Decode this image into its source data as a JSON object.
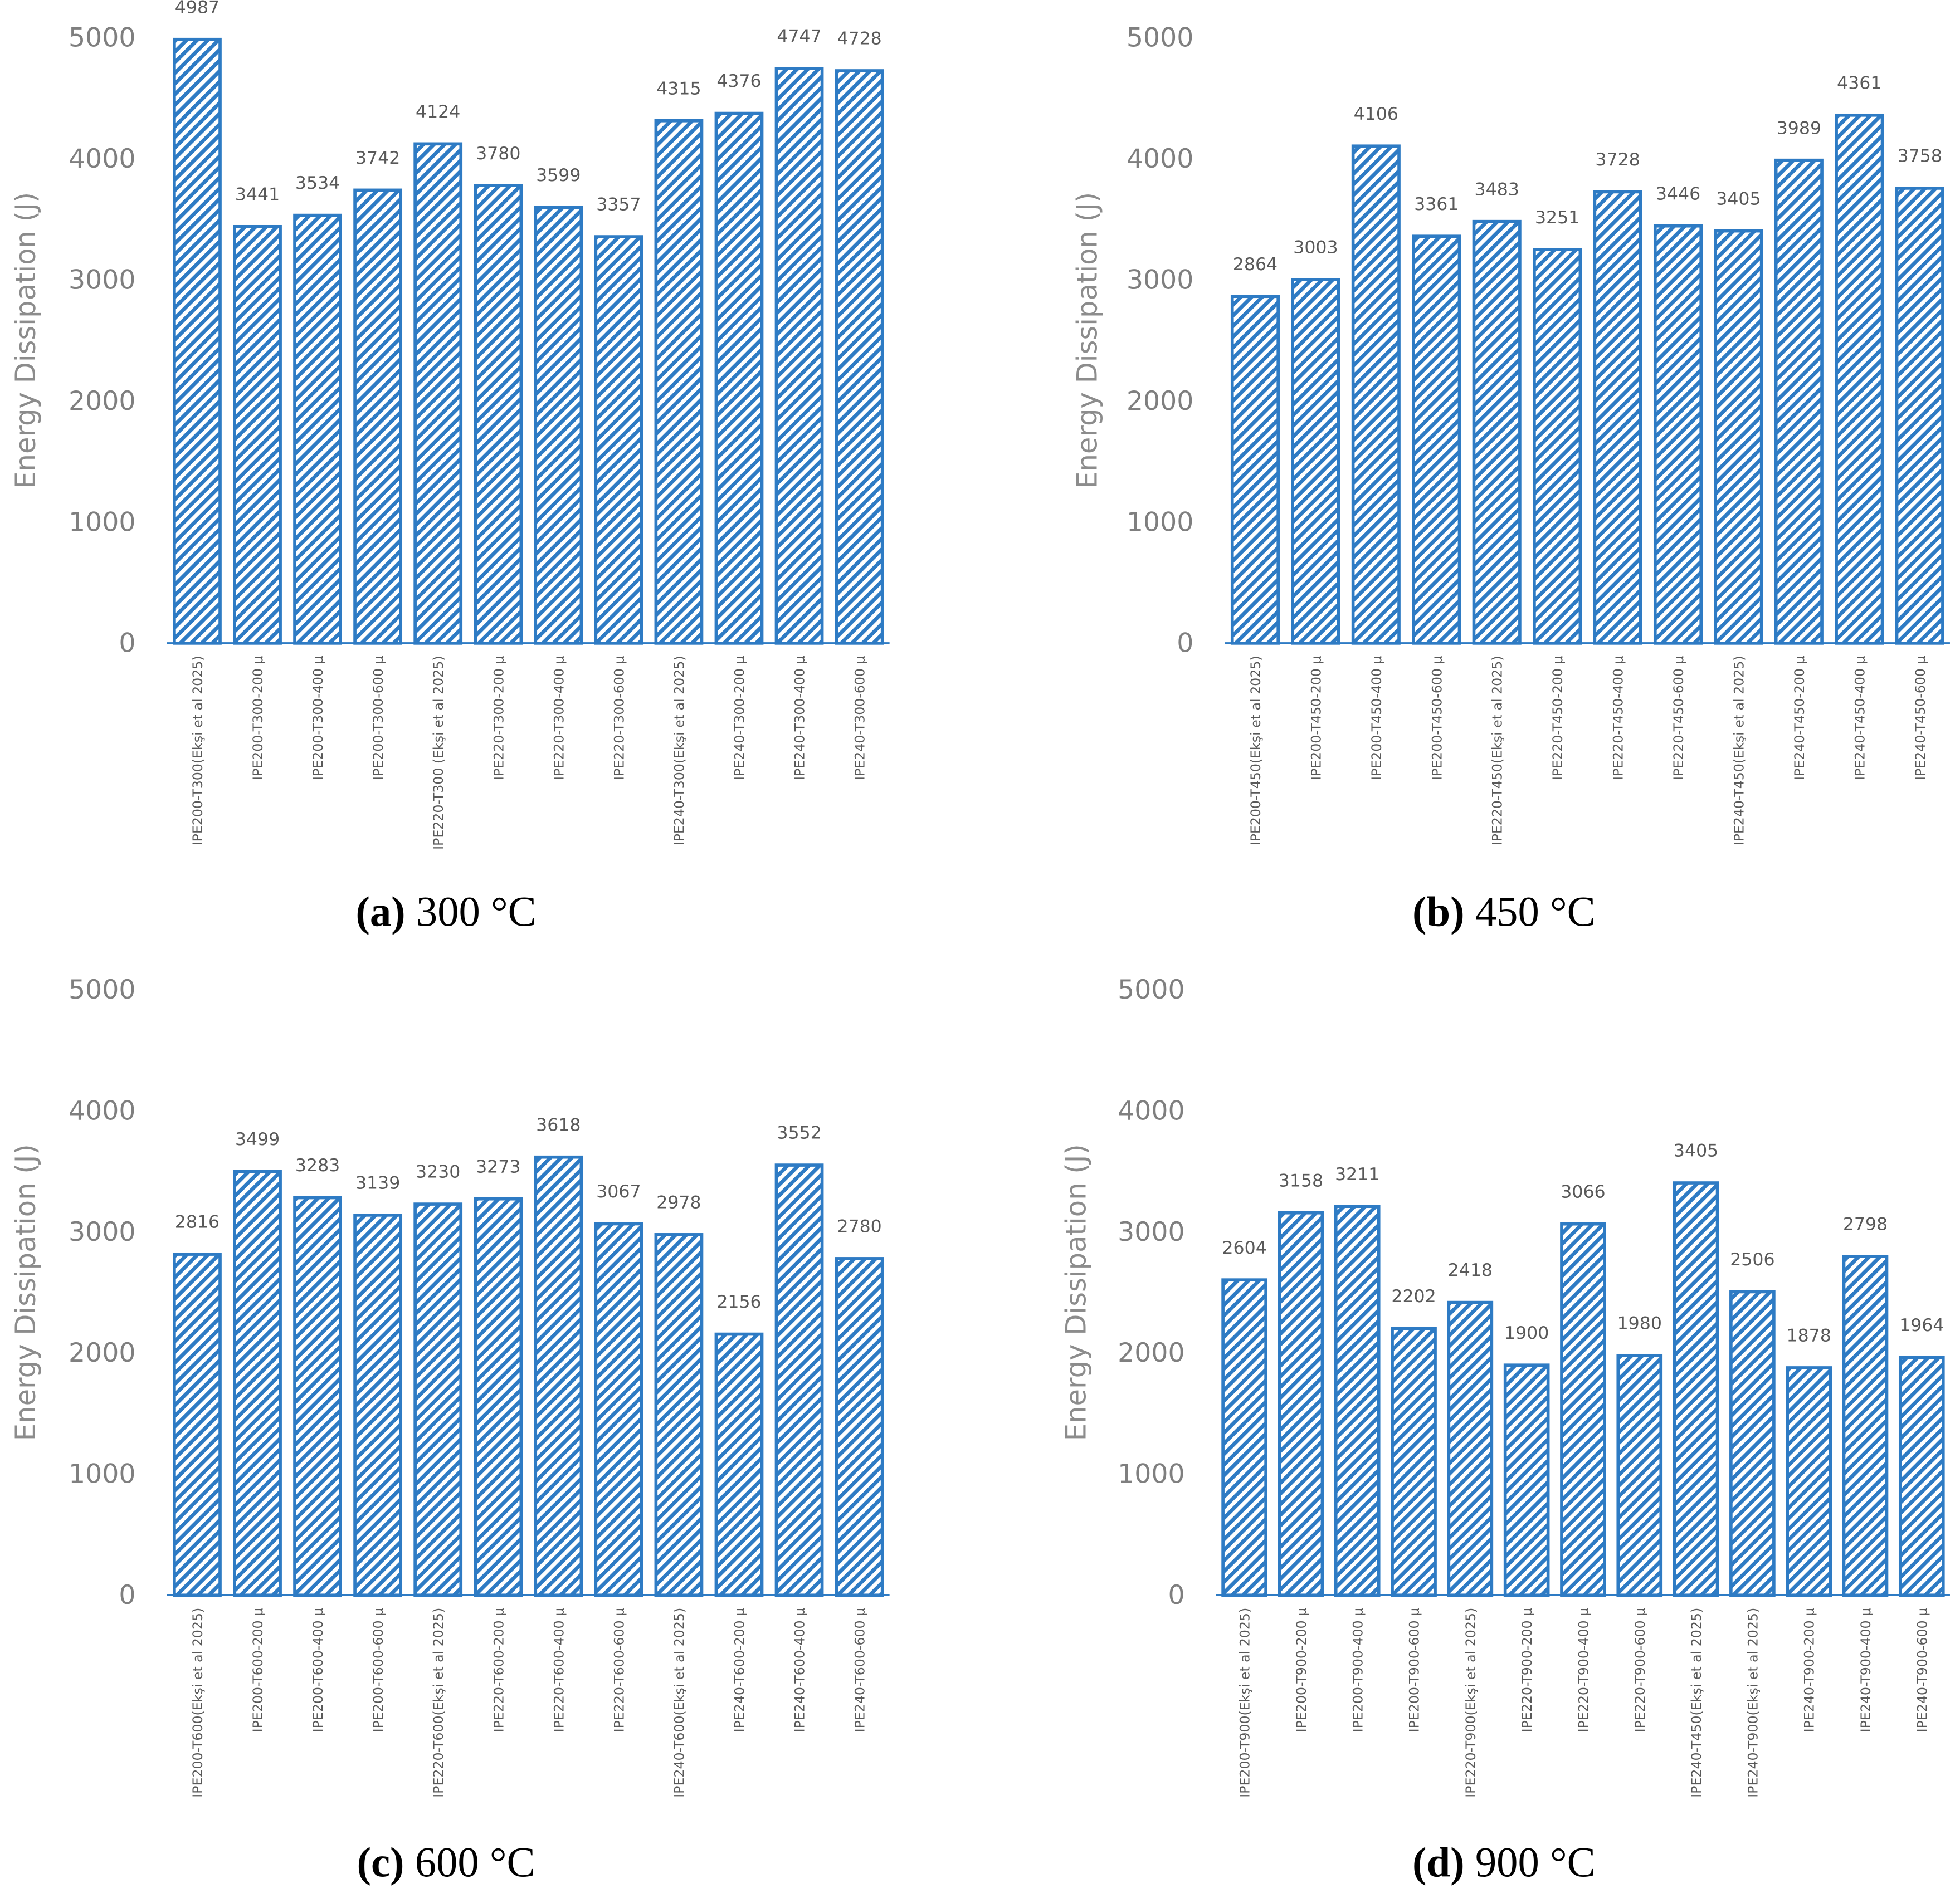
{
  "chart_data": [
    {
      "type": "bar",
      "caption_label": "(a)",
      "caption": "300 °C",
      "y_label": "Energy Dissipation (J)",
      "categories": [
        "IPE200-T300(Ekşi et al 2025)",
        "IPE200-T300-200 μ",
        "IPE200-T300-400 μ",
        "IPE200-T300-600 μ",
        "IPE220-T300 (Ekşi et al 2025)",
        "IPE220-T300-200 μ",
        "IPE220-T300-400 μ",
        "IPE220-T300-600 μ",
        "IPE240-T300(Ekşi et al 2025)",
        "IPE240-T300-200 μ",
        "IPE240-T300-400 μ",
        "IPE240-T300-600 μ"
      ],
      "values": [
        4987,
        3441,
        3534,
        3742,
        4124,
        3780,
        3599,
        3357,
        4315,
        4376,
        4747,
        4728
      ],
      "color": "#2e7bc4",
      "ylim": [
        0,
        5000
      ],
      "yticks": [
        0,
        1000,
        2000,
        3000,
        4000,
        5000
      ]
    },
    {
      "type": "bar",
      "caption_label": "(b)",
      "caption": "450 °C",
      "y_label": "Energy Dissipation (J)",
      "categories": [
        "IPE200-T450(Ekşi et al 2025)",
        "IPE200-T450-200 μ",
        "IPE200-T450-400 μ",
        "IPE200-T450-600 μ",
        "IPE220-T450(Ekşi et al 2025)",
        "IPE220-T450-200 μ",
        "IPE220-T450-400 μ",
        "IPE220-T450-600 μ",
        "IPE240-T450(Ekşi et al 2025)",
        "IPE240-T450-200 μ",
        "IPE240-T450-400 μ",
        "IPE240-T450-600 μ"
      ],
      "values": [
        2864,
        3003,
        4106,
        3361,
        3483,
        3251,
        3728,
        3446,
        3405,
        3989,
        4361,
        3758
      ],
      "color": "#2e7bc4",
      "ylim": [
        0,
        5000
      ],
      "yticks": [
        0,
        1000,
        2000,
        3000,
        4000,
        5000
      ]
    },
    {
      "type": "bar",
      "caption_label": "(c)",
      "caption": "600 °C",
      "y_label": "Energy Dissipation (J)",
      "categories": [
        "IPE200-T600(Ekşi et al 2025)",
        "IPE200-T600-200 μ",
        "IPE200-T600-400 μ",
        "IPE200-T600-600 μ",
        "IPE220-T600(Ekşi et al 2025)",
        "IPE220-T600-200 μ",
        "IPE220-T600-400 μ",
        "IPE220-T600-600 μ",
        "IPE240-T600(Ekşi et al 2025)",
        "IPE240-T600-200 μ",
        "IPE240-T600-400 μ",
        "IPE240-T600-600 μ"
      ],
      "values": [
        2816,
        3499,
        3283,
        3139,
        3230,
        3273,
        3618,
        3067,
        2978,
        2156,
        3552,
        2780
      ],
      "color": "#2e7bc4",
      "ylim": [
        0,
        5000
      ],
      "yticks": [
        0,
        1000,
        2000,
        3000,
        4000,
        5000
      ]
    },
    {
      "type": "bar",
      "caption_label": "(d)",
      "caption": "900 °C",
      "y_label": "Energy Dissipation (J)",
      "categories": [
        "IPE200-T900(Ekşi et al 2025)",
        "IPE200-T900-200 μ",
        "IPE200-T900-400 μ",
        "IPE200-T900-600 μ",
        "IPE220-T900(Ekşi et al 2025)",
        "IPE220-T900-200 μ",
        "IPE220-T900-400 μ",
        "IPE220-T900-600 μ",
        "IPE240-T450(Ekşi et al 2025)",
        "IPE240-T900(Ekşi et al 2025)",
        "IPE240-T900-200 μ",
        "IPE240-T900-400 μ",
        "IPE240-T900-600 μ"
      ],
      "values": [
        2604,
        3158,
        3211,
        2202,
        2418,
        1900,
        3066,
        1980,
        3405,
        2506,
        1878,
        2798,
        1964
      ],
      "color": "#2e7bc4",
      "ylim": [
        0,
        5000
      ],
      "yticks": [
        0,
        1000,
        2000,
        3000,
        4000,
        5000
      ]
    }
  ]
}
